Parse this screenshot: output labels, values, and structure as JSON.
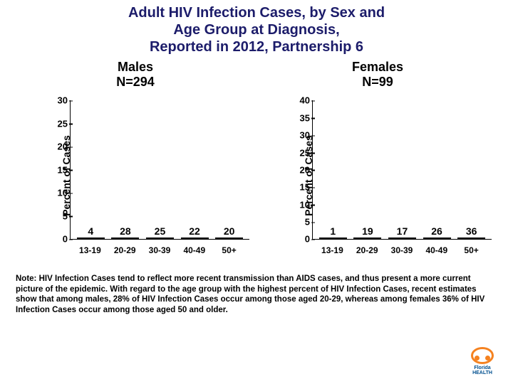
{
  "title_lines": [
    "Adult HIV Infection Cases, by Sex and",
    "Age Group at Diagnosis,",
    "Reported in 2012, Partnership 6"
  ],
  "note": "Note: HIV Infection Cases tend to reflect more recent transmission than AIDS cases, and thus present a more current picture of the epidemic. With regard to the age group with the highest percent of HIV Infection Cases, recent estimates show that among males, 28% of HIV Infection Cases occur among those aged 20-29, whereas among females 36% of HIV Infection Cases occur among those aged 50 and older.",
  "logo": {
    "line1": "Florida",
    "line2": "HEALTH",
    "accent": "#f58220",
    "text_color": "#004f8f"
  },
  "ylabel": "Percent of Cases",
  "categories": [
    "13-19",
    "20-29",
    "30-39",
    "40-49",
    "50+"
  ],
  "bar_colors": [
    "#00a651",
    "#2b2bd8",
    "#ed1c24",
    "#ffffff",
    "#fff200"
  ],
  "bar_border": "#000000",
  "axis_color": "#000000",
  "background": "#ffffff",
  "title_color": "#1c1c6a",
  "fonts": {
    "title_pt": 20,
    "subtitle_pt": 18,
    "tick_pt": 13,
    "xlabel_pt": 12,
    "value_pt": 14,
    "note_pt": 11.5,
    "ylabel_pt": 14
  },
  "charts": [
    {
      "id": "males",
      "subtitle_lines": [
        "Males",
        "N=294"
      ],
      "ylim": [
        0,
        30
      ],
      "ytick_step": 5,
      "values": [
        4,
        28,
        25,
        22,
        20
      ]
    },
    {
      "id": "females",
      "subtitle_lines": [
        "Females",
        "N=99"
      ],
      "ylim": [
        0,
        40
      ],
      "ytick_step": 5,
      "values": [
        1,
        19,
        17,
        26,
        36
      ]
    }
  ]
}
